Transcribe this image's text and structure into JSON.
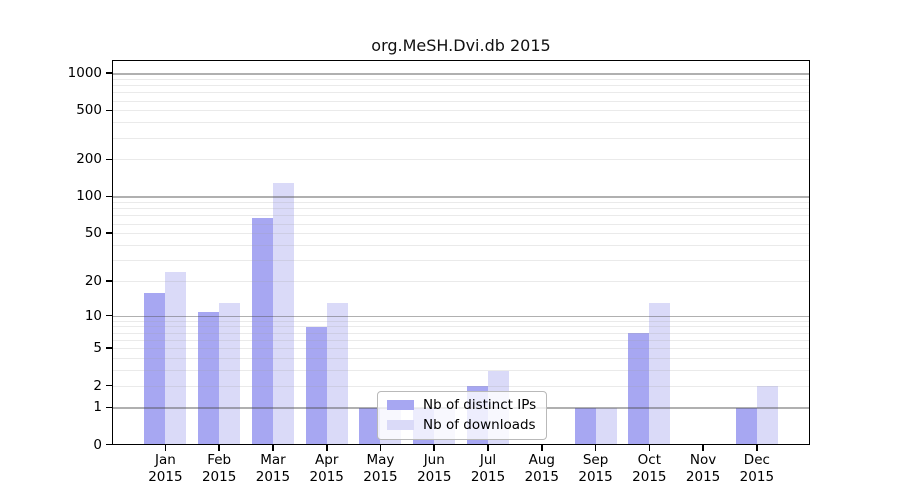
{
  "title": "org.MeSH.Dvi.db 2015",
  "colors": {
    "distinct_ips": "#a7a7f2",
    "downloads": "#dadaf8",
    "axis": "#000000",
    "grid_major": "#b4b4b4",
    "grid_minor": "#e7e7e7"
  },
  "legend": {
    "items": [
      {
        "label": "Nb of distinct IPs",
        "series_key": "distinct_ips"
      },
      {
        "label": "Nb of downloads",
        "series_key": "downloads"
      }
    ]
  },
  "x_axis": {
    "year_label": "2015"
  },
  "chart_data": {
    "type": "bar",
    "title": "org.MeSH.Dvi.db 2015",
    "categories": [
      "Jan",
      "Feb",
      "Mar",
      "Apr",
      "May",
      "Jun",
      "Jul",
      "Aug",
      "Sep",
      "Oct",
      "Nov",
      "Dec"
    ],
    "category_year": "2015",
    "series": [
      {
        "name": "Nb of distinct IPs",
        "values": [
          16,
          11,
          67,
          8,
          1,
          1,
          2,
          0,
          1,
          7,
          0,
          1
        ]
      },
      {
        "name": "Nb of downloads",
        "values": [
          24,
          13,
          130,
          13,
          1,
          1,
          3,
          0,
          1,
          13,
          0,
          2
        ]
      }
    ],
    "yscale": "log10(1+x)",
    "ylim": [
      0,
      1255
    ],
    "y_ticks": [
      0,
      1,
      2,
      5,
      10,
      20,
      50,
      100,
      200,
      500,
      1000
    ],
    "grid_minor_values": [
      2,
      3,
      4,
      5,
      6,
      7,
      8,
      9,
      20,
      30,
      40,
      50,
      60,
      70,
      80,
      90,
      200,
      300,
      400,
      500,
      600,
      700,
      800,
      900
    ],
    "grid_major_values": [
      1,
      10,
      100,
      1000
    ],
    "legend_position": "lower-center",
    "grid": "horizontal"
  }
}
